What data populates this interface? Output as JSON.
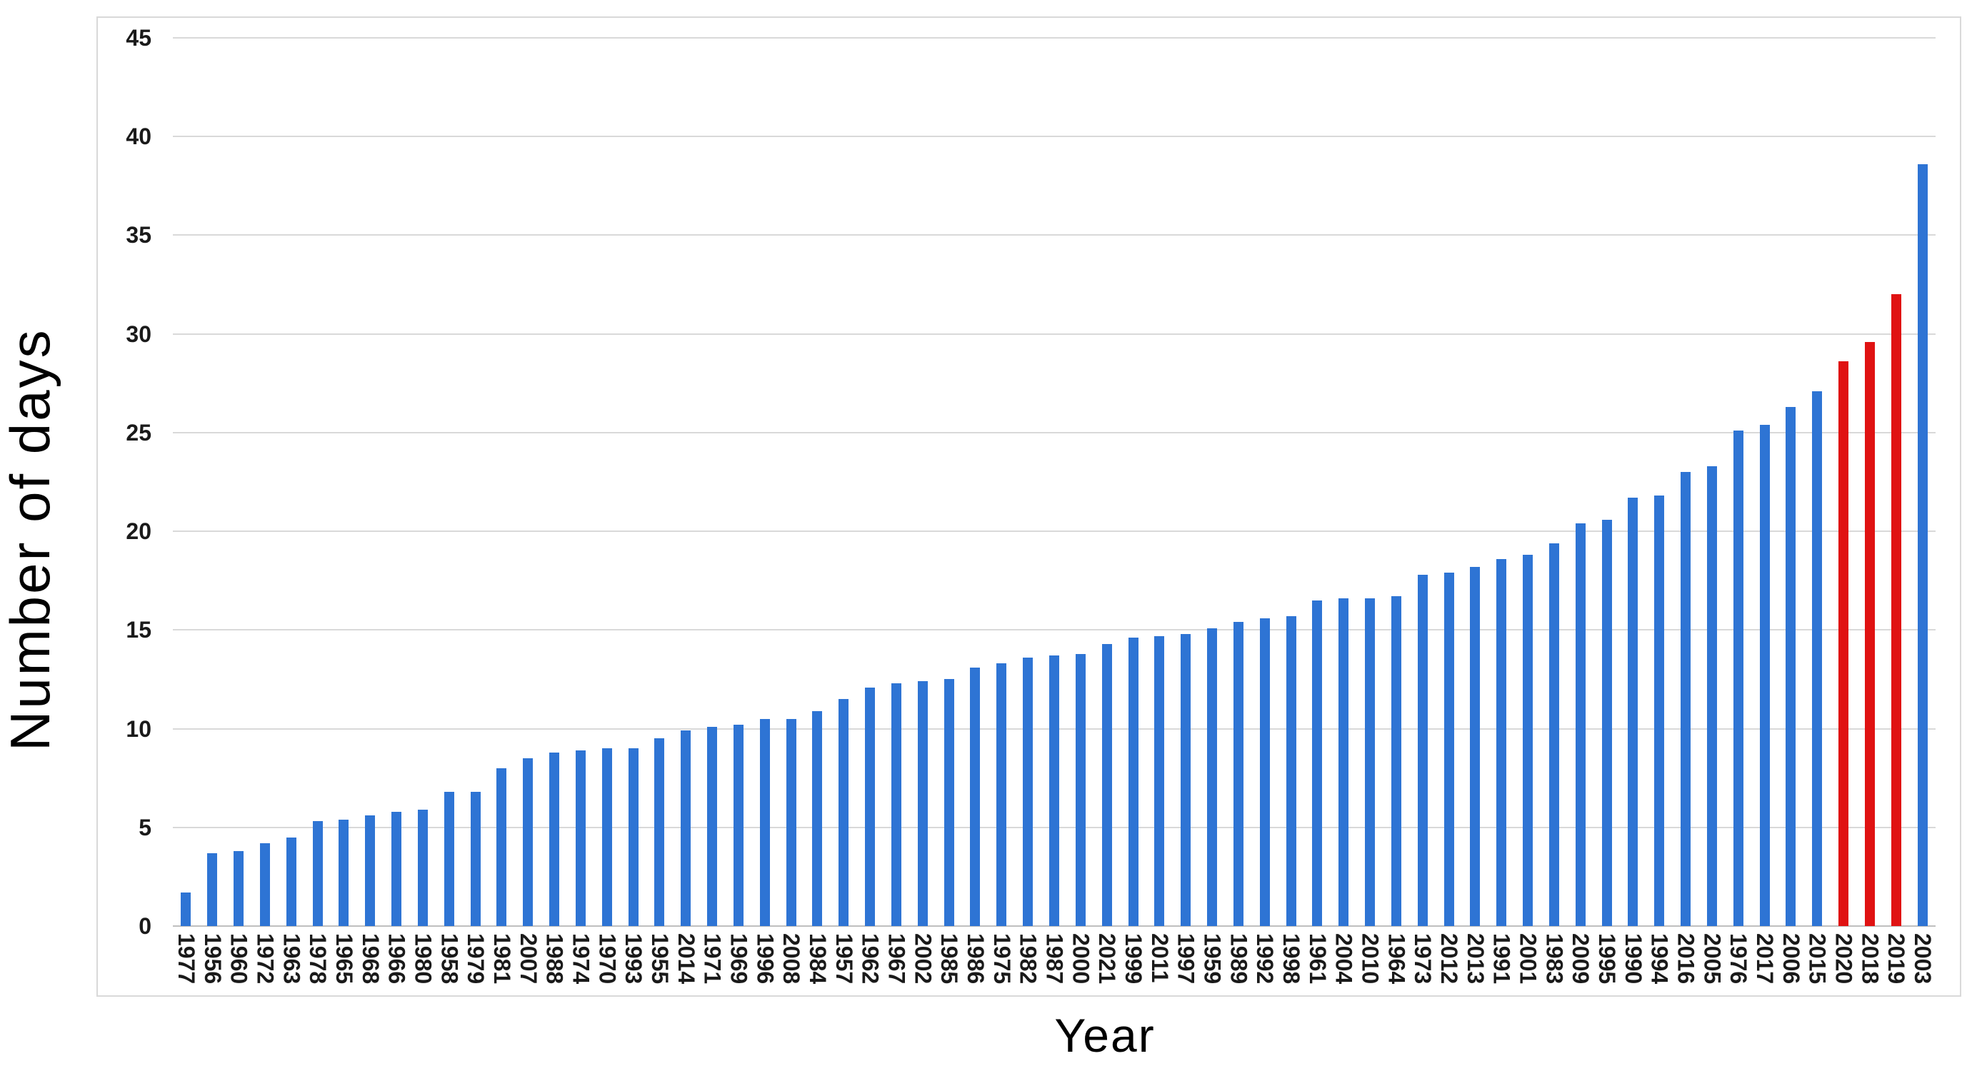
{
  "figure": {
    "y_axis_title": "Number of days",
    "x_axis_title": "Year"
  },
  "chart_data": {
    "type": "bar",
    "title": "",
    "xlabel": "Year",
    "ylabel": "Number of days",
    "ylim": [
      0,
      45
    ],
    "yticks": [
      0,
      5,
      10,
      15,
      20,
      25,
      30,
      35,
      40,
      45
    ],
    "grid": true,
    "legend": false,
    "sort_order": "ascending by value",
    "categories": [
      "1977",
      "1956",
      "1960",
      "1972",
      "1963",
      "1978",
      "1965",
      "1968",
      "1966",
      "1980",
      "1958",
      "1979",
      "1981",
      "2007",
      "1988",
      "1974",
      "1970",
      "1993",
      "1955",
      "2014",
      "1971",
      "1969",
      "1996",
      "2008",
      "1984",
      "1957",
      "1962",
      "1967",
      "2002",
      "1985",
      "1986",
      "1975",
      "1982",
      "1987",
      "2000",
      "2021",
      "1999",
      "2011",
      "1997",
      "1959",
      "1989",
      "1992",
      "1998",
      "1961",
      "2004",
      "2010",
      "1964",
      "1973",
      "2012",
      "2013",
      "1991",
      "2001",
      "1983",
      "2009",
      "1995",
      "1990",
      "1994",
      "2016",
      "2005",
      "1976",
      "2017",
      "2006",
      "2015",
      "2020",
      "2018",
      "2019",
      "2003"
    ],
    "values": [
      1.7,
      3.7,
      3.8,
      4.2,
      4.5,
      5.3,
      5.4,
      5.6,
      5.8,
      5.9,
      6.8,
      6.8,
      8.0,
      8.5,
      8.8,
      8.9,
      9.0,
      9.0,
      9.5,
      9.9,
      10.1,
      10.2,
      10.5,
      10.5,
      10.9,
      11.5,
      12.1,
      12.3,
      12.4,
      12.5,
      13.1,
      13.3,
      13.6,
      13.7,
      13.8,
      14.3,
      14.6,
      14.7,
      14.8,
      15.1,
      15.4,
      15.6,
      15.7,
      16.5,
      16.6,
      16.6,
      16.7,
      17.8,
      17.9,
      18.2,
      18.6,
      18.8,
      19.4,
      20.4,
      20.6,
      21.7,
      21.8,
      23.0,
      23.3,
      25.1,
      25.4,
      26.3,
      27.1,
      28.6,
      29.6,
      32.0,
      38.6
    ],
    "highlighted_categories": [
      "2020",
      "2018",
      "2019"
    ],
    "colors": {
      "bar": "#2E74D4",
      "highlight": "#E01212",
      "gridline": "#D9D9D9",
      "axis_line": "#BFBFBF",
      "tick_text": "#1A1A1A",
      "title_text": "#000000",
      "frame": "#D9D9D9"
    }
  }
}
